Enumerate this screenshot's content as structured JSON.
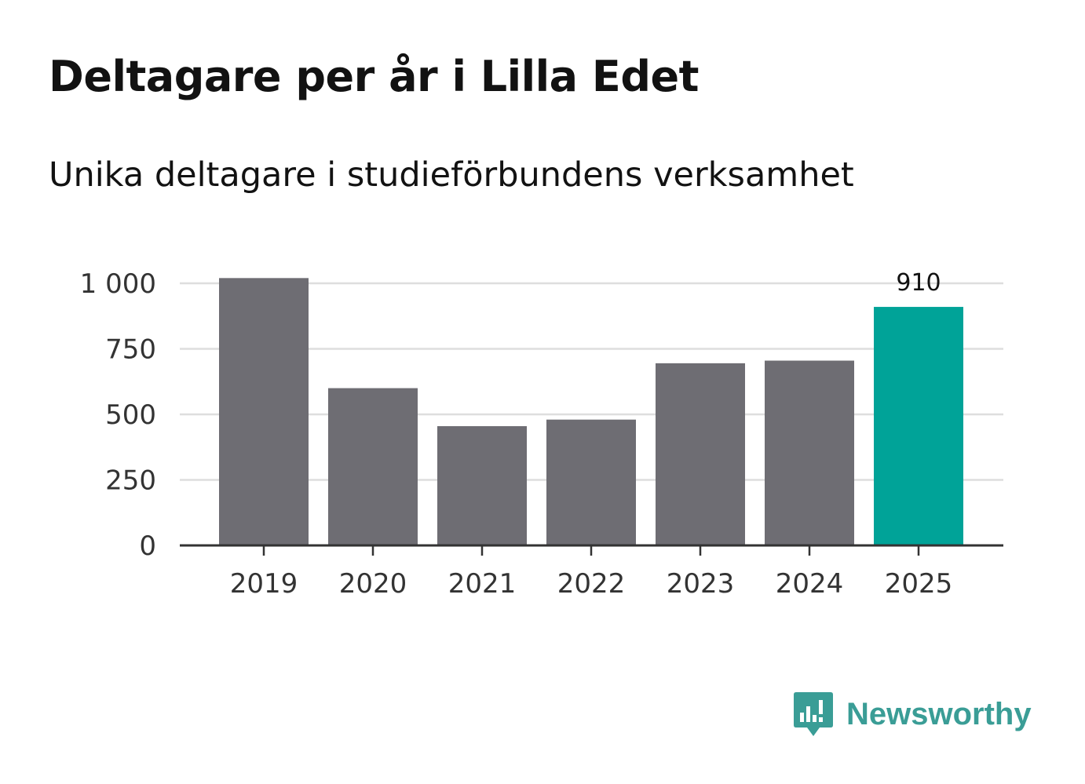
{
  "title": "Deltagare per år i Lilla Edet",
  "subtitle": "Unika deltagare i studieförbundens verksamhet",
  "brand": {
    "name": "Newsworthy",
    "icon": "newsworthy-logo-icon",
    "color": "#3a9d96"
  },
  "colors": {
    "bar": "#6e6d73",
    "highlight": "#00a398",
    "grid": "#dedede",
    "axis": "#333333"
  },
  "chart_data": {
    "type": "bar",
    "title": "Deltagare per år i Lilla Edet",
    "subtitle": "Unika deltagare i studieförbundens verksamhet",
    "xlabel": "",
    "ylabel": "",
    "categories": [
      "2019",
      "2020",
      "2021",
      "2022",
      "2023",
      "2024",
      "2025"
    ],
    "values": [
      1020,
      600,
      455,
      480,
      695,
      705,
      910
    ],
    "highlight_index": 6,
    "highlight_label": "910",
    "ylim": [
      0,
      1000
    ],
    "yticks": [
      0,
      250,
      500,
      750,
      1000
    ],
    "ytick_labels": [
      "0",
      "250",
      "500",
      "750",
      "1 000"
    ],
    "grid": true,
    "legend": "none"
  }
}
